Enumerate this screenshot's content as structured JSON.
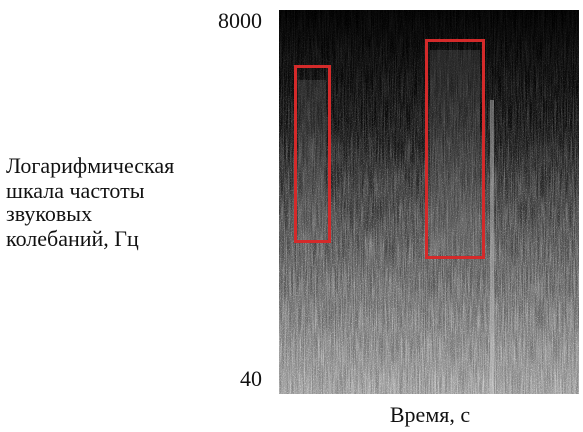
{
  "axis": {
    "y_top": "8000",
    "y_bottom": "40",
    "y_label": [
      "Логарифмическая",
      "шкала частоты",
      "звуковых",
      "колебаний, Гц"
    ],
    "x_label": "Время, с"
  }
}
